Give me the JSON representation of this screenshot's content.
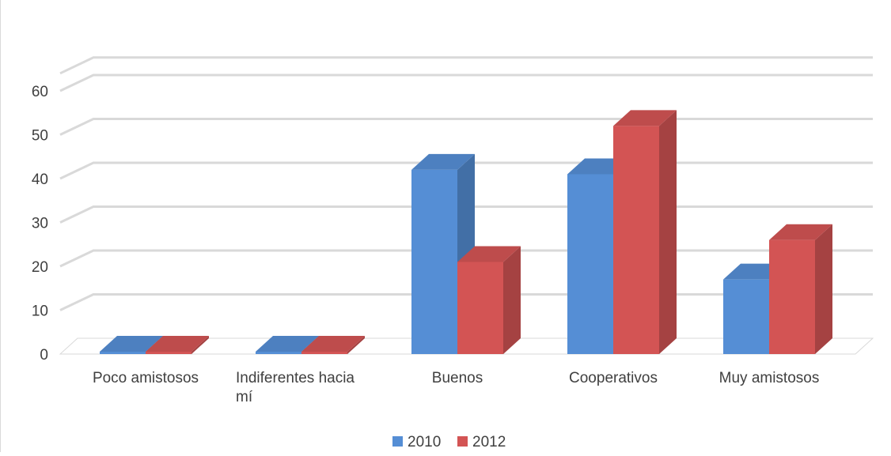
{
  "chart_data": {
    "type": "bar",
    "subtype": "3d-clustered-column",
    "categories": [
      "Poco amistosos",
      "Indiferentes hacia mí",
      "Buenos",
      "Cooperativos",
      "Muy amistosos"
    ],
    "category_lines": [
      [
        "Poco amistosos"
      ],
      [
        "Indiferentes hacia",
        "mí"
      ],
      [
        "Buenos"
      ],
      [
        "Cooperativos"
      ],
      [
        "Muy amistosos"
      ]
    ],
    "series": [
      {
        "name": "2010",
        "values": [
          0,
          0,
          42,
          41,
          17
        ],
        "color": "#558ed5"
      },
      {
        "name": "2012",
        "values": [
          0,
          0,
          21,
          52,
          26
        ],
        "color": "#d35454"
      }
    ],
    "y_ticks": [
      0,
      10,
      20,
      30,
      40,
      50,
      60
    ],
    "ylim": [
      0,
      64
    ],
    "grid": true,
    "legend_position": "bottom",
    "title": "",
    "xlabel": "",
    "ylabel": ""
  }
}
